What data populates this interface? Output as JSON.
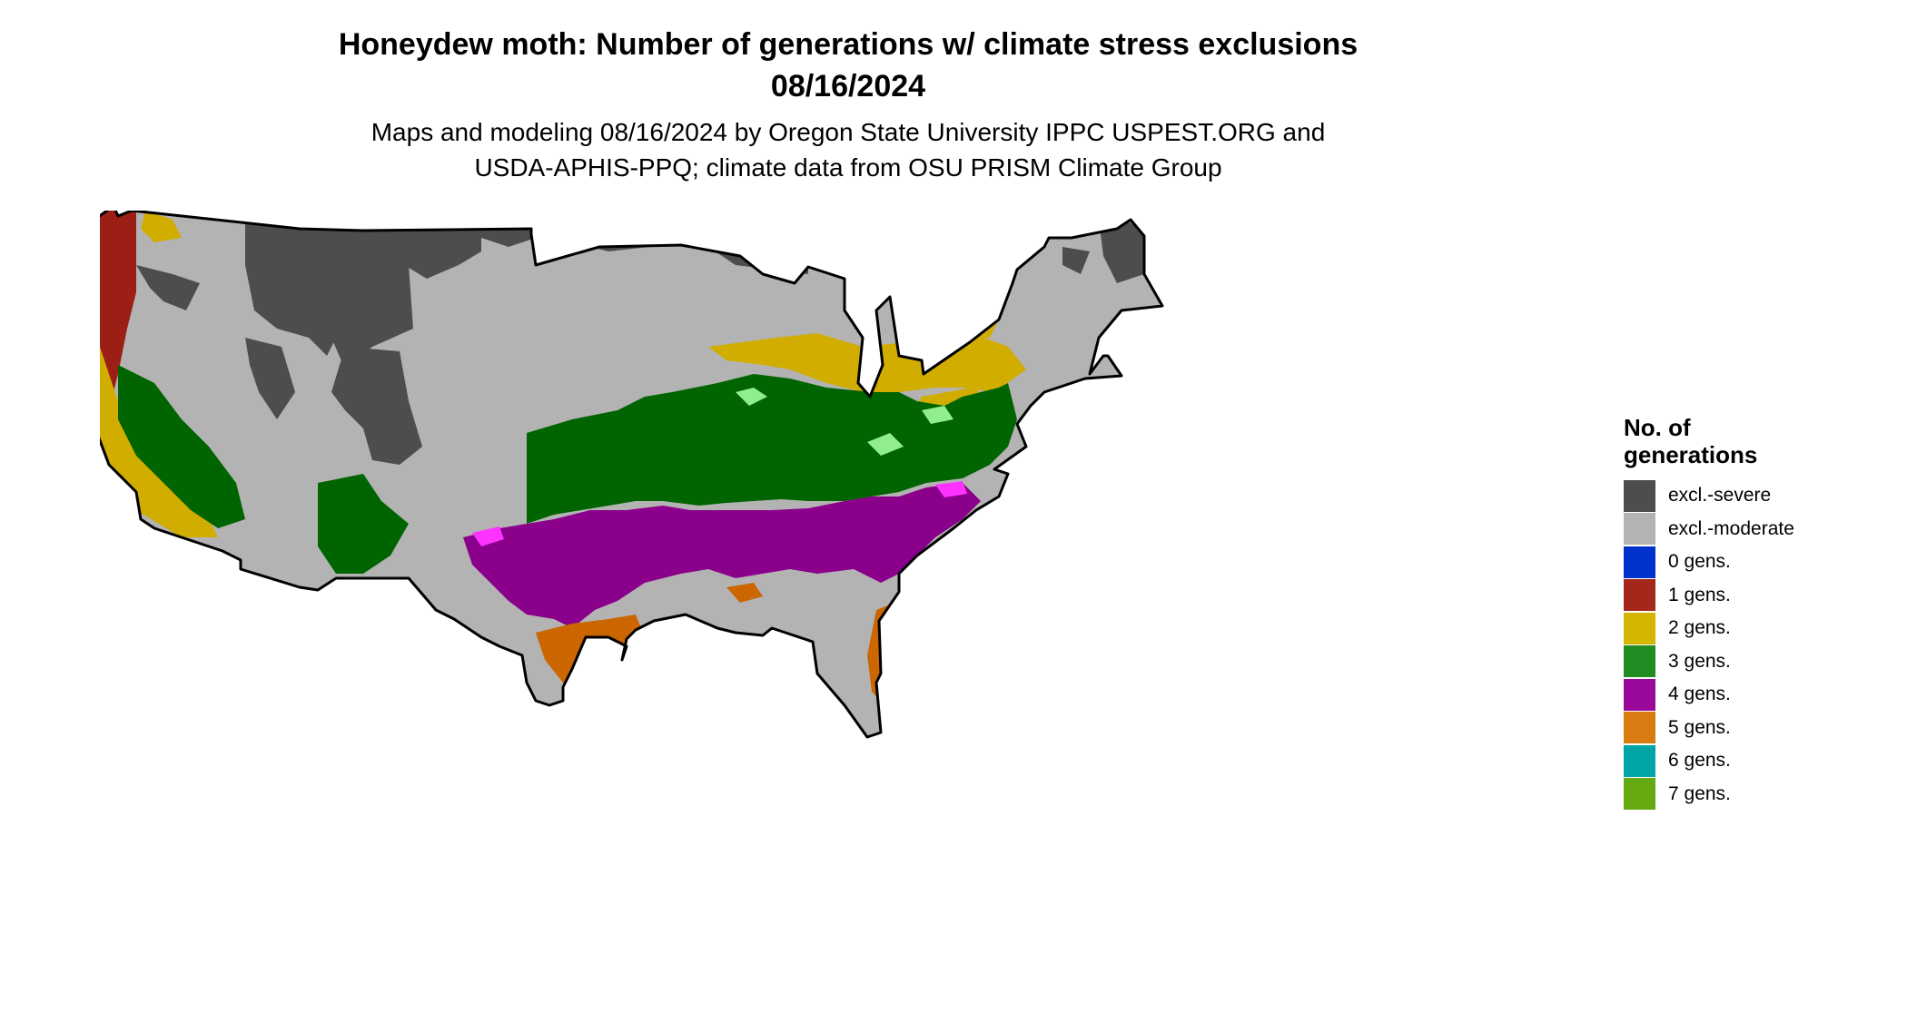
{
  "title": {
    "line1": "Honeydew moth: Number of generations w/ climate stress exclusions",
    "line2": "08/16/2024"
  },
  "subtitle": {
    "line1": "Maps and modeling 08/16/2024 by Oregon State University IPPC USPEST.ORG and",
    "line2": "USDA-APHIS-PPQ; climate data from OSU PRISM Climate Group"
  },
  "legend": {
    "title_line1": "No. of",
    "title_line2": "generations",
    "items": [
      {
        "label": "excl.-severe",
        "color": "#4d4d4d"
      },
      {
        "label": "excl.-moderate",
        "color": "#b3b3b3"
      },
      {
        "label": "0 gens.",
        "color": "#0033cc"
      },
      {
        "label": "1 gens.",
        "color": "#a3271b"
      },
      {
        "label": "2 gens.",
        "color": "#d4b500"
      },
      {
        "label": "3 gens.",
        "color": "#228b22"
      },
      {
        "label": "4 gens.",
        "color": "#9a0a9a"
      },
      {
        "label": "5 gens.",
        "color": "#d97b10"
      },
      {
        "label": "6 gens.",
        "color": "#00a6a6"
      },
      {
        "label": "7 gens.",
        "color": "#66aa11"
      }
    ]
  },
  "map_colors": {
    "severe": "#4d4d4d",
    "moderate": "#b3b3b3",
    "one": "#9c1f16",
    "two": "#d1ad00",
    "three": "#006400",
    "three_light": "#90ee90",
    "four": "#8b008b",
    "four_light": "#ff33ff",
    "five": "#cc6600",
    "five_light": "#ff9944",
    "six": "#00b3b3",
    "border": "#000000"
  }
}
